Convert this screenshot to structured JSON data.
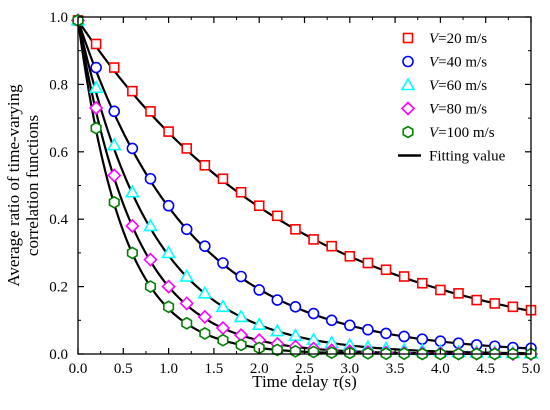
{
  "chart_data": {
    "type": "scatter",
    "xlabel_prefix": "Time delay ",
    "xlabel_symbol": "τ",
    "xlabel_suffix": "(s)",
    "ylabel_lines": [
      "Average ratio of time-varying",
      "correlation functions"
    ],
    "xlim": [
      0.0,
      5.0
    ],
    "ylim": [
      0.0,
      1.0
    ],
    "xticks": [
      "0.0",
      "0.5",
      "1.0",
      "1.5",
      "2.0",
      "2.5",
      "3.0",
      "3.5",
      "4.0",
      "4.5",
      "5.0"
    ],
    "yticks": [
      "0.0",
      "0.2",
      "0.4",
      "0.6",
      "0.8",
      "1.0"
    ],
    "legend_position": "top-right",
    "x": [
      0.0,
      0.2,
      0.4,
      0.6,
      0.8,
      1.0,
      1.2,
      1.4,
      1.6,
      1.8,
      2.0,
      2.2,
      2.4,
      2.6,
      2.8,
      3.0,
      3.2,
      3.4,
      3.6,
      3.8,
      4.0,
      4.2,
      4.4,
      4.6,
      4.8,
      5.0
    ],
    "series": [
      {
        "name_symbol": "V",
        "name_rest": "=20 m/s",
        "marker": "square",
        "color": "#ff0000",
        "decay_rate": 0.41,
        "values": [
          0.99,
          0.92,
          0.85,
          0.78,
          0.72,
          0.66,
          0.61,
          0.56,
          0.52,
          0.48,
          0.44,
          0.41,
          0.37,
          0.34,
          0.32,
          0.29,
          0.27,
          0.25,
          0.23,
          0.21,
          0.19,
          0.18,
          0.16,
          0.15,
          0.14,
          0.13
        ]
      },
      {
        "name_symbol": "V",
        "name_rest": "=40 m/s",
        "marker": "circle",
        "color": "#0000ff",
        "decay_rate": 0.82,
        "values": [
          0.99,
          0.85,
          0.72,
          0.61,
          0.52,
          0.44,
          0.37,
          0.32,
          0.27,
          0.23,
          0.19,
          0.16,
          0.14,
          0.12,
          0.1,
          0.085,
          0.072,
          0.061,
          0.052,
          0.044,
          0.038,
          0.032,
          0.027,
          0.023,
          0.019,
          0.017
        ]
      },
      {
        "name_symbol": "V",
        "name_rest": "=60 m/s",
        "marker": "triangle",
        "color": "#00ffff",
        "decay_rate": 1.22,
        "values": [
          0.99,
          0.79,
          0.62,
          0.48,
          0.38,
          0.3,
          0.23,
          0.18,
          0.14,
          0.11,
          0.087,
          0.068,
          0.054,
          0.042,
          0.033,
          0.026,
          0.02,
          0.016,
          0.012,
          0.01,
          0.008,
          0.006,
          0.005,
          0.004,
          0.003,
          0.002
        ]
      },
      {
        "name_symbol": "V",
        "name_rest": "=80 m/s",
        "marker": "diamond",
        "color": "#ff00ff",
        "decay_rate": 1.6,
        "values": [
          0.99,
          0.73,
          0.53,
          0.38,
          0.28,
          0.2,
          0.15,
          0.11,
          0.077,
          0.056,
          0.041,
          0.03,
          0.022,
          0.016,
          0.011,
          0.008,
          0.006,
          0.004,
          0.003,
          0.002,
          0.002,
          0.001,
          0.001,
          0.001,
          0.0,
          0.0
        ]
      },
      {
        "name_symbol": "V",
        "name_rest": "=100 m/s",
        "marker": "hexagon",
        "color": "#008000",
        "decay_rate": 2.0,
        "values": [
          0.99,
          0.67,
          0.45,
          0.3,
          0.2,
          0.14,
          0.091,
          0.061,
          0.041,
          0.027,
          0.018,
          0.012,
          0.008,
          0.006,
          0.004,
          0.003,
          0.002,
          0.001,
          0.001,
          0.0,
          0.0,
          0.0,
          0.0,
          0.0,
          0.0,
          0.0
        ]
      }
    ],
    "fit_legend_label": "Fitting value",
    "fit_color": "#000000"
  }
}
